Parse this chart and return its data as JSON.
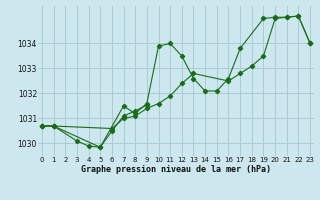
{
  "xlabel": "Graphe pression niveau de la mer (hPa)",
  "bg_color": "#cce8ee",
  "grid_color": "#aaccd4",
  "line_color": "#1a6b1a",
  "series": [
    {
      "x": [
        0,
        1,
        3,
        4,
        5,
        7,
        8,
        9,
        10,
        11,
        12,
        13,
        14,
        15,
        16,
        17,
        19,
        20,
        21,
        22,
        23
      ],
      "y": [
        1030.7,
        1030.7,
        1030.1,
        1029.9,
        1029.85,
        1031.5,
        1031.2,
        1031.6,
        1033.9,
        1034.0,
        1033.5,
        1032.6,
        1032.1,
        1032.1,
        1032.6,
        1033.8,
        1035.0,
        1035.05,
        1035.05,
        1035.1,
        1034.0
      ]
    },
    {
      "x": [
        0,
        1,
        5,
        6,
        7,
        8,
        9
      ],
      "y": [
        1030.7,
        1030.7,
        1029.85,
        1030.5,
        1031.1,
        1031.3,
        1031.55
      ]
    },
    {
      "x": [
        0,
        1,
        6,
        7,
        8,
        9,
        10,
        11,
        12,
        13,
        16,
        17,
        18,
        19,
        20,
        21,
        22,
        23
      ],
      "y": [
        1030.7,
        1030.7,
        1030.6,
        1031.0,
        1031.1,
        1031.4,
        1031.6,
        1031.9,
        1032.4,
        1032.8,
        1032.5,
        1032.8,
        1033.1,
        1033.5,
        1035.0,
        1035.05,
        1035.1,
        1034.0
      ]
    }
  ],
  "ylim": [
    1029.5,
    1035.5
  ],
  "yticks": [
    1030,
    1031,
    1032,
    1033,
    1034
  ],
  "xticks": [
    0,
    1,
    2,
    3,
    4,
    5,
    6,
    7,
    8,
    9,
    10,
    11,
    12,
    13,
    14,
    15,
    16,
    17,
    18,
    19,
    20,
    21,
    22,
    23
  ],
  "xlim": [
    -0.3,
    23.3
  ]
}
